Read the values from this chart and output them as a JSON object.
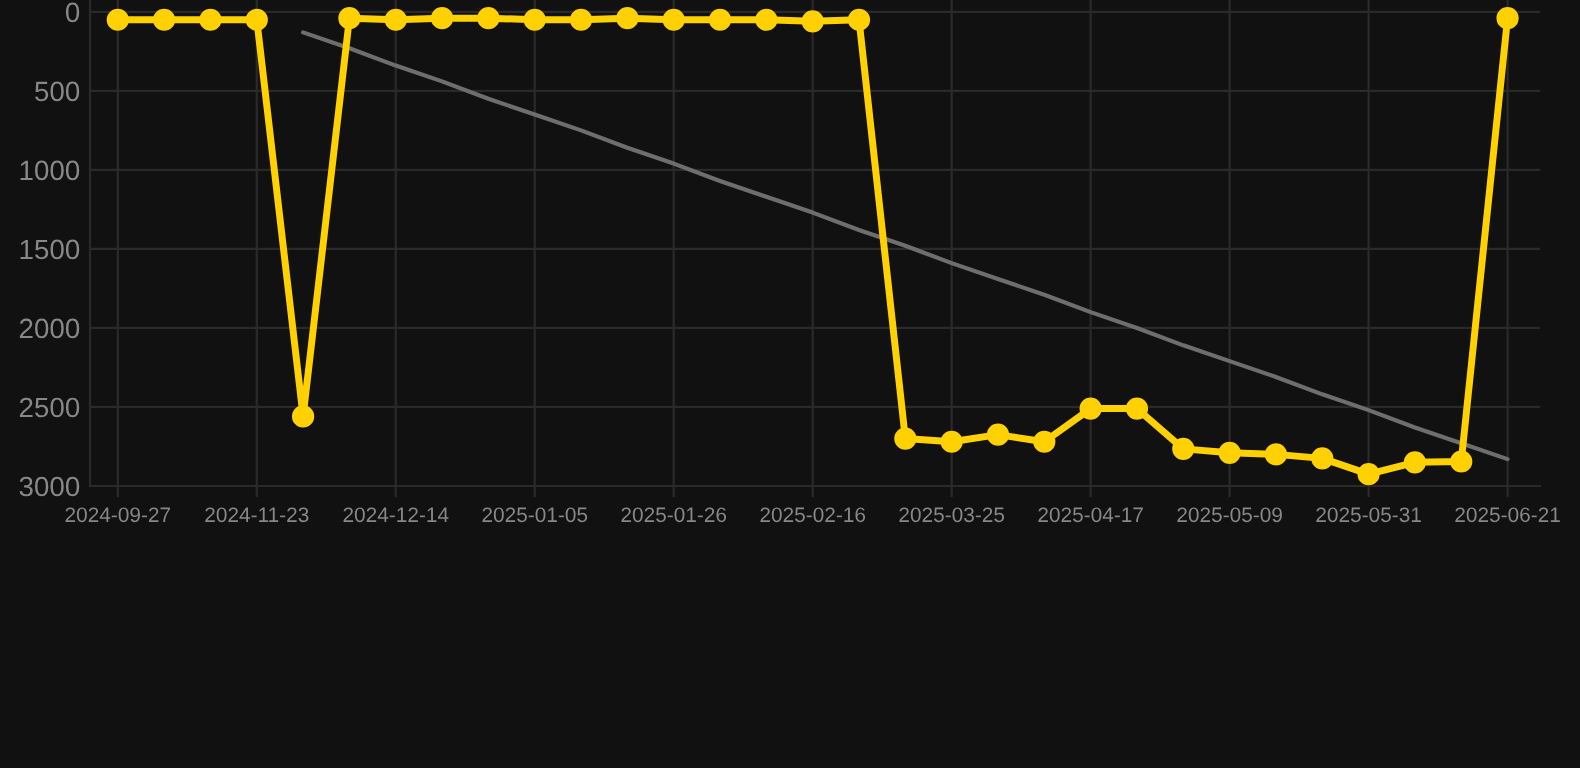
{
  "chart_data": {
    "type": "line",
    "categories": [
      "2024-09-27",
      null,
      null,
      "2024-11-23",
      null,
      null,
      "2024-12-14",
      null,
      null,
      "2025-01-05",
      null,
      null,
      "2025-01-26",
      null,
      null,
      "2025-02-16",
      null,
      null,
      "2025-03-25",
      null,
      null,
      "2025-04-17",
      null,
      null,
      "2025-05-09",
      null,
      null,
      "2025-05-31",
      null,
      null,
      "2025-06-21"
    ],
    "series": [
      {
        "color": "#ffd100",
        "marker": "circle",
        "values": [
          50,
          50,
          50,
          50,
          2560,
          40,
          50,
          40,
          40,
          50,
          50,
          40,
          50,
          50,
          50,
          60,
          50,
          2700,
          2720,
          2675,
          2720,
          2510,
          2510,
          2765,
          2790,
          2800,
          2825,
          2925,
          2850,
          2845,
          40
        ]
      },
      {
        "color": "#6e6e6e",
        "marker": "none",
        "values": [
          null,
          null,
          null,
          null,
          130,
          230,
          340,
          440,
          550,
          650,
          750,
          860,
          960,
          1070,
          1170,
          1270,
          1380,
          1480,
          1590,
          1690,
          1790,
          1900,
          2000,
          2110,
          2210,
          2310,
          2420,
          2520,
          2630,
          2730,
          2830
        ]
      }
    ],
    "ylim": [
      3000,
      -75
    ],
    "yticks": [
      0,
      500,
      1000,
      1500,
      2000,
      2500,
      3000
    ],
    "grid": true,
    "legend": false
  }
}
